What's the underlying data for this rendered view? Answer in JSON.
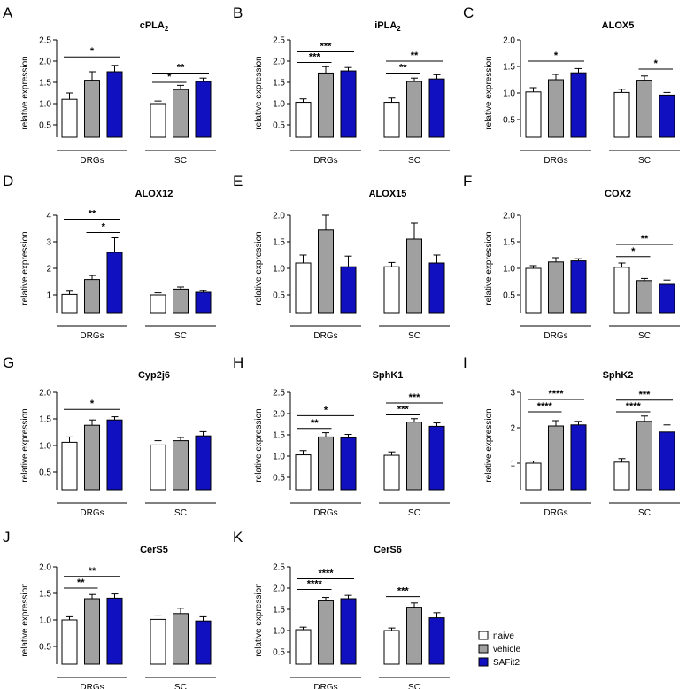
{
  "legend": {
    "entries": [
      {
        "name": "naive",
        "color": "#ffffff"
      },
      {
        "name": "vehicle",
        "color": "#a0a0a0"
      },
      {
        "name": "SAFit2",
        "color": "#1010c0"
      }
    ]
  },
  "chart_data": [
    {
      "panel": "A",
      "type": "bar",
      "title": "cPLA",
      "title_sub": "2",
      "ylabel": "relative expression",
      "ylim": [
        0,
        2.5
      ],
      "yticks": [
        0.5,
        1.0,
        1.5,
        2.0,
        2.5
      ],
      "ytick_labels": [
        "0.5",
        "1.0",
        "1.5",
        "2.0",
        "2.5"
      ],
      "groups": [
        {
          "label": "DRGs",
          "values": [
            1.1,
            1.55,
            1.75
          ],
          "errors": [
            0.15,
            0.2,
            0.15
          ]
        },
        {
          "label": "SC",
          "values": [
            1.0,
            1.33,
            1.52
          ],
          "errors": [
            0.06,
            0.1,
            0.08
          ]
        }
      ],
      "sig": [
        {
          "g": 0,
          "from": 0,
          "to": 2,
          "y": 2.1,
          "label": "*"
        },
        {
          "g": 1,
          "from": 0,
          "to": 1,
          "y": 1.5,
          "label": "*"
        },
        {
          "g": 1,
          "from": 0,
          "to": 2,
          "y": 1.72,
          "label": "**"
        }
      ]
    },
    {
      "panel": "B",
      "type": "bar",
      "title": "iPLA",
      "title_sub": "2",
      "ylabel": "relative expression",
      "ylim": [
        0,
        2.5
      ],
      "yticks": [
        0.5,
        1.0,
        1.5,
        2.0,
        2.5
      ],
      "ytick_labels": [
        "0.5",
        "1.0",
        "1.5",
        "2.0",
        "2.5"
      ],
      "groups": [
        {
          "label": "DRGs",
          "values": [
            1.03,
            1.72,
            1.77
          ],
          "errors": [
            0.08,
            0.15,
            0.08
          ]
        },
        {
          "label": "SC",
          "values": [
            1.03,
            1.52,
            1.58
          ],
          "errors": [
            0.1,
            0.08,
            0.1
          ]
        }
      ],
      "sig": [
        {
          "g": 0,
          "from": 0,
          "to": 1,
          "y": 1.97,
          "label": "***"
        },
        {
          "g": 0,
          "from": 0,
          "to": 2,
          "y": 2.22,
          "label": "***"
        },
        {
          "g": 1,
          "from": 0,
          "to": 1,
          "y": 1.72,
          "label": "**"
        },
        {
          "g": 1,
          "from": 0,
          "to": 2,
          "y": 2.0,
          "label": "**"
        }
      ]
    },
    {
      "panel": "C",
      "type": "bar",
      "title": "ALOX5",
      "title_sub": "",
      "ylabel": "relative expression",
      "ylim": [
        0,
        2.0
      ],
      "yticks": [
        0.5,
        1.0,
        1.5,
        2.0
      ],
      "ytick_labels": [
        "0.5",
        "1.0",
        "1.5",
        "2.0"
      ],
      "groups": [
        {
          "label": "DRGs",
          "values": [
            1.02,
            1.25,
            1.38
          ],
          "errors": [
            0.08,
            0.1,
            0.08
          ]
        },
        {
          "label": "SC",
          "values": [
            1.01,
            1.24,
            0.96
          ],
          "errors": [
            0.06,
            0.08,
            0.05
          ]
        }
      ],
      "sig": [
        {
          "g": 0,
          "from": 0,
          "to": 2,
          "y": 1.6,
          "label": "*"
        },
        {
          "g": 1,
          "from": 1,
          "to": 2,
          "y": 1.45,
          "label": "*"
        }
      ]
    },
    {
      "panel": "D",
      "type": "bar",
      "title": "ALOX12",
      "title_sub": "",
      "ylabel": "relative expression",
      "ylim": [
        0,
        4
      ],
      "yticks": [
        1,
        2,
        3,
        4
      ],
      "ytick_labels": [
        "1",
        "2",
        "3",
        "4"
      ],
      "groups": [
        {
          "label": "DRGs",
          "values": [
            1.02,
            1.58,
            2.6
          ],
          "errors": [
            0.12,
            0.15,
            0.55
          ]
        },
        {
          "label": "SC",
          "values": [
            1.0,
            1.22,
            1.1
          ],
          "errors": [
            0.08,
            0.08,
            0.06
          ]
        }
      ],
      "sig": [
        {
          "g": 0,
          "from": 1,
          "to": 2,
          "y": 3.35,
          "label": "*"
        },
        {
          "g": 0,
          "from": 0,
          "to": 2,
          "y": 3.85,
          "label": "**"
        }
      ]
    },
    {
      "panel": "E",
      "type": "bar",
      "title": "ALOX15",
      "title_sub": "",
      "ylabel": "relative expression",
      "ylim": [
        0,
        2.0
      ],
      "yticks": [
        0.5,
        1.0,
        1.5,
        2.0
      ],
      "ytick_labels": [
        "0.5",
        "1.0",
        "1.5",
        "2.0"
      ],
      "groups": [
        {
          "label": "DRGs",
          "values": [
            1.1,
            1.72,
            1.03
          ],
          "errors": [
            0.15,
            0.28,
            0.2
          ]
        },
        {
          "label": "SC",
          "values": [
            1.03,
            1.55,
            1.1
          ],
          "errors": [
            0.08,
            0.3,
            0.15
          ]
        }
      ],
      "sig": []
    },
    {
      "panel": "F",
      "type": "bar",
      "title": "COX2",
      "title_sub": "",
      "ylabel": "relative expression",
      "ylim": [
        0,
        2.0
      ],
      "yticks": [
        0.5,
        1.0,
        1.5,
        2.0
      ],
      "ytick_labels": [
        "0.5",
        "1.0",
        "1.5",
        "2.0"
      ],
      "groups": [
        {
          "label": "DRGs",
          "values": [
            1.0,
            1.12,
            1.14
          ],
          "errors": [
            0.05,
            0.08,
            0.04
          ]
        },
        {
          "label": "SC",
          "values": [
            1.02,
            0.77,
            0.7
          ],
          "errors": [
            0.08,
            0.04,
            0.08
          ]
        }
      ],
      "sig": [
        {
          "g": 1,
          "from": 0,
          "to": 1,
          "y": 1.22,
          "label": "*"
        },
        {
          "g": 1,
          "from": 0,
          "to": 2,
          "y": 1.45,
          "label": "**"
        }
      ]
    },
    {
      "panel": "G",
      "type": "bar",
      "title": "Cyp2j6",
      "title_sub": "",
      "ylabel": "relative expression",
      "ylim": [
        0,
        2.0
      ],
      "yticks": [
        0.5,
        1.0,
        1.5,
        2.0
      ],
      "ytick_labels": [
        "0.5",
        "1.0",
        "1.5",
        "2.0"
      ],
      "groups": [
        {
          "label": "DRGs",
          "values": [
            1.06,
            1.38,
            1.48
          ],
          "errors": [
            0.1,
            0.1,
            0.06
          ]
        },
        {
          "label": "SC",
          "values": [
            1.01,
            1.09,
            1.18
          ],
          "errors": [
            0.08,
            0.06,
            0.08
          ]
        }
      ],
      "sig": [
        {
          "g": 0,
          "from": 0,
          "to": 2,
          "y": 1.68,
          "label": "*"
        }
      ]
    },
    {
      "panel": "H",
      "type": "bar",
      "title": "SphK1",
      "title_sub": "",
      "ylabel": "relative expression",
      "ylim": [
        0,
        2.5
      ],
      "yticks": [
        0.5,
        1.0,
        1.5,
        2.0,
        2.5
      ],
      "ytick_labels": [
        "0.5",
        "1.0",
        "1.5",
        "2.0",
        "2.5"
      ],
      "groups": [
        {
          "label": "DRGs",
          "values": [
            1.03,
            1.45,
            1.43
          ],
          "errors": [
            0.1,
            0.1,
            0.08
          ]
        },
        {
          "label": "SC",
          "values": [
            1.02,
            1.8,
            1.7
          ],
          "errors": [
            0.08,
            0.08,
            0.08
          ]
        }
      ],
      "sig": [
        {
          "g": 0,
          "from": 0,
          "to": 1,
          "y": 1.65,
          "label": "**"
        },
        {
          "g": 0,
          "from": 0,
          "to": 2,
          "y": 1.95,
          "label": "*"
        },
        {
          "g": 1,
          "from": 0,
          "to": 1,
          "y": 1.97,
          "label": "***"
        },
        {
          "g": 1,
          "from": 0,
          "to": 2,
          "y": 2.25,
          "label": "***"
        }
      ]
    },
    {
      "panel": "I",
      "type": "bar",
      "title": "SphK2",
      "title_sub": "",
      "ylabel": "relative expression",
      "ylim": [
        0,
        3
      ],
      "yticks": [
        1,
        2,
        3
      ],
      "ytick_labels": [
        "1",
        "2",
        "3"
      ],
      "groups": [
        {
          "label": "DRGs",
          "values": [
            1.0,
            2.05,
            2.08
          ],
          "errors": [
            0.06,
            0.15,
            0.1
          ]
        },
        {
          "label": "SC",
          "values": [
            1.03,
            2.18,
            1.88
          ],
          "errors": [
            0.1,
            0.15,
            0.2
          ]
        }
      ],
      "sig": [
        {
          "g": 0,
          "from": 0,
          "to": 1,
          "y": 2.45,
          "label": "****"
        },
        {
          "g": 0,
          "from": 0,
          "to": 2,
          "y": 2.8,
          "label": "****"
        },
        {
          "g": 1,
          "from": 0,
          "to": 1,
          "y": 2.45,
          "label": "****"
        },
        {
          "g": 1,
          "from": 0,
          "to": 2,
          "y": 2.78,
          "label": "***"
        }
      ]
    },
    {
      "panel": "J",
      "type": "bar",
      "title": "CerS5",
      "title_sub": "",
      "ylabel": "relative expression",
      "ylim": [
        0,
        2.0
      ],
      "yticks": [
        0.5,
        1.0,
        1.5,
        2.0
      ],
      "ytick_labels": [
        "0.5",
        "1.0",
        "1.5",
        "2.0"
      ],
      "groups": [
        {
          "label": "DRGs",
          "values": [
            1.0,
            1.4,
            1.41
          ],
          "errors": [
            0.06,
            0.08,
            0.08
          ]
        },
        {
          "label": "SC",
          "values": [
            1.01,
            1.12,
            0.98
          ],
          "errors": [
            0.08,
            0.1,
            0.08
          ]
        }
      ],
      "sig": [
        {
          "g": 0,
          "from": 0,
          "to": 1,
          "y": 1.6,
          "label": "**"
        },
        {
          "g": 0,
          "from": 0,
          "to": 2,
          "y": 1.82,
          "label": "**"
        }
      ]
    },
    {
      "panel": "K",
      "type": "bar",
      "title": "CerS6",
      "title_sub": "",
      "ylabel": "relative expression",
      "ylim": [
        0,
        2.5
      ],
      "yticks": [
        0.5,
        1.0,
        1.5,
        2.0,
        2.5
      ],
      "ytick_labels": [
        "0.5",
        "1.0",
        "1.5",
        "2.0",
        "2.5"
      ],
      "groups": [
        {
          "label": "DRGs",
          "values": [
            1.02,
            1.7,
            1.75
          ],
          "errors": [
            0.06,
            0.08,
            0.08
          ]
        },
        {
          "label": "SC",
          "values": [
            1.0,
            1.55,
            1.3
          ],
          "errors": [
            0.06,
            0.1,
            0.12
          ]
        }
      ],
      "sig": [
        {
          "g": 0,
          "from": 0,
          "to": 1,
          "y": 1.97,
          "label": "****"
        },
        {
          "g": 0,
          "from": 0,
          "to": 2,
          "y": 2.22,
          "label": "****"
        },
        {
          "g": 1,
          "from": 0,
          "to": 1,
          "y": 1.8,
          "label": "***"
        }
      ]
    }
  ]
}
